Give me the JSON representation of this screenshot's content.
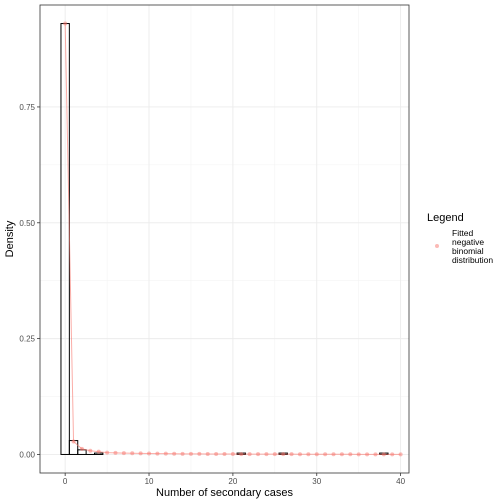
{
  "chart_data": {
    "type": "bar",
    "title": "",
    "xlabel": "Number of secondary cases",
    "ylabel": "Density",
    "xlim": [
      -3,
      41
    ],
    "ylim": [
      -0.04,
      0.97
    ],
    "x_ticks": [
      0,
      10,
      20,
      30,
      40
    ],
    "x_tick_labels": [
      "0",
      "10",
      "20",
      "30",
      "40"
    ],
    "y_ticks": [
      0,
      0.25,
      0.5,
      0.75
    ],
    "y_tick_labels": [
      "0.00",
      "0.25",
      "0.50",
      "0.75"
    ],
    "grid": true,
    "legend_position": "right",
    "histogram": {
      "bins": [
        {
          "x": 0,
          "density": 0.93
        },
        {
          "x": 1,
          "density": 0.03
        },
        {
          "x": 2,
          "density": 0.01
        },
        {
          "x": 3,
          "density": 0.0
        },
        {
          "x": 4,
          "density": 0.003
        },
        {
          "x": 21,
          "density": 0.003
        },
        {
          "x": 26,
          "density": 0.003
        },
        {
          "x": 38,
          "density": 0.003
        }
      ],
      "bin_width": 1,
      "outline_color": "#000000"
    },
    "series": [
      {
        "name": "Fitted negative binomial distribution",
        "color": "#f8766d",
        "x": [
          0,
          1,
          2,
          3,
          4,
          5,
          6,
          7,
          8,
          9,
          10,
          11,
          12,
          13,
          14,
          15,
          16,
          17,
          18,
          19,
          20,
          21,
          22,
          23,
          24,
          25,
          26,
          27,
          28,
          29,
          30,
          31,
          32,
          33,
          34,
          35,
          36,
          37,
          38,
          39,
          40
        ],
        "values": [
          0.93,
          0.028,
          0.012,
          0.008,
          0.006,
          0.004,
          0.0035,
          0.003,
          0.0027,
          0.0024,
          0.0021,
          0.0019,
          0.0017,
          0.0016,
          0.0014,
          0.0013,
          0.0012,
          0.0011,
          0.001,
          0.001,
          0.0009,
          0.0008,
          0.0008,
          0.0007,
          0.0007,
          0.0006,
          0.0006,
          0.0006,
          0.0005,
          0.0005,
          0.0005,
          0.0004,
          0.0004,
          0.0004,
          0.0004,
          0.0003,
          0.0003,
          0.0003,
          0.0003,
          0.0003,
          0.0003
        ]
      }
    ],
    "legend": {
      "title": "Legend",
      "items": [
        {
          "label_lines": [
            "Fitted",
            "negative",
            "binomial",
            "distribution"
          ],
          "color": "#f8766d"
        }
      ]
    }
  }
}
